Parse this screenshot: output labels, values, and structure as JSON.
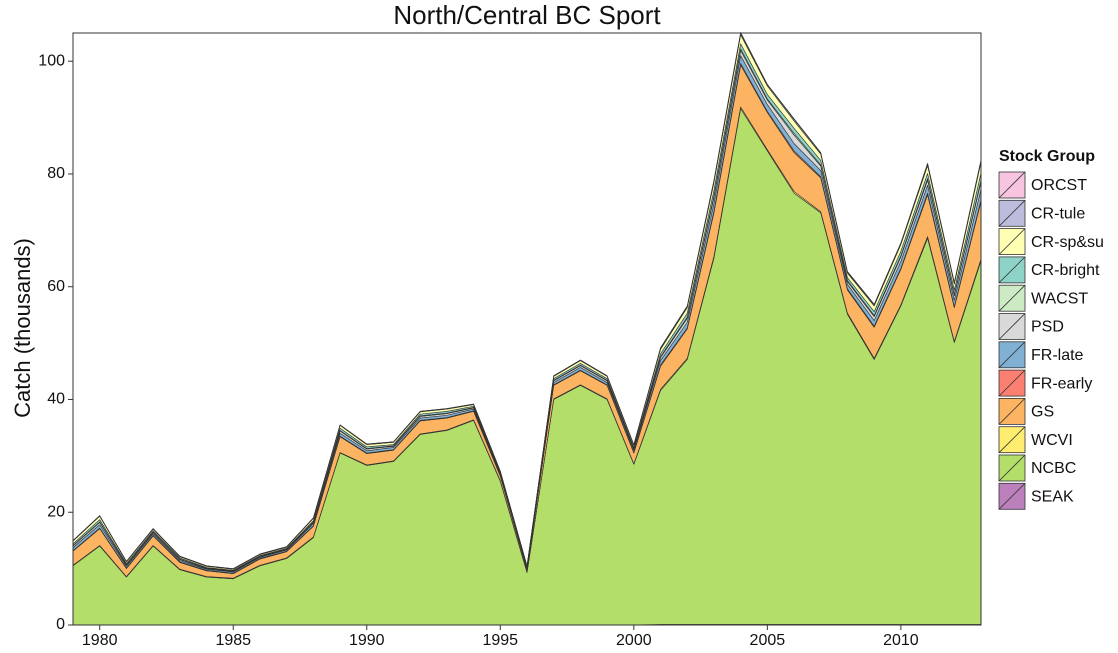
{
  "chart_data": {
    "type": "stacked_area",
    "title": "North/Central BC Sport",
    "ylabel": "Catch (thousands)",
    "legend_title": "Stock Group",
    "x": [
      1979,
      1980,
      1981,
      1982,
      1983,
      1984,
      1985,
      1986,
      1987,
      1988,
      1989,
      1990,
      1991,
      1992,
      1993,
      1994,
      1995,
      1996,
      1997,
      1998,
      1999,
      2000,
      2001,
      2002,
      2003,
      2004,
      2005,
      2006,
      2007,
      2008,
      2009,
      2010,
      2011,
      2012,
      2013
    ],
    "xlim": [
      1979,
      2013
    ],
    "xticks": [
      1980,
      1985,
      1990,
      1995,
      2000,
      2005,
      2010
    ],
    "ylim": [
      0,
      105
    ],
    "yticks": [
      0,
      20,
      40,
      60,
      80,
      100
    ],
    "series": [
      {
        "name": "ORCST",
        "color": "#f7c5e0",
        "values": [
          0,
          0,
          0,
          0,
          0,
          0,
          0,
          0,
          0,
          0,
          0,
          0,
          0,
          0,
          0,
          0,
          0,
          0,
          0,
          0,
          0,
          0,
          0.1,
          0.1,
          0.1,
          0.1,
          0.1,
          0.1,
          0.1,
          0.1,
          0.1,
          0.1,
          0.1,
          0.1,
          0.1
        ]
      },
      {
        "name": "CR-tule",
        "color": "#bcbddc",
        "values": [
          0.1,
          0.1,
          0.1,
          0.1,
          0.1,
          0.1,
          0.1,
          0.1,
          0.1,
          0.1,
          0.1,
          0.1,
          0.1,
          0.1,
          0.1,
          0.1,
          0.1,
          0.1,
          0.1,
          0.1,
          0.1,
          0.1,
          0.2,
          0.2,
          0.3,
          0.3,
          0.2,
          0.3,
          0.2,
          0.2,
          0.2,
          0.2,
          0.3,
          0.2,
          0.3
        ]
      },
      {
        "name": "CR-sp&su",
        "color": "#ffffb3",
        "values": [
          0.5,
          0.6,
          0.3,
          0.3,
          0.2,
          0.2,
          0.2,
          0.2,
          0.2,
          0.4,
          0.5,
          0.4,
          0.4,
          0.4,
          0.4,
          0.3,
          0.2,
          0.1,
          0.4,
          0.5,
          0.4,
          0.4,
          0.8,
          1,
          1.4,
          1.6,
          1.5,
          1.3,
          1.1,
          0.8,
          1,
          1.2,
          1.4,
          1.1,
          1.9
        ]
      },
      {
        "name": "CR-bright",
        "color": "#8dd3c7",
        "values": [
          0.3,
          0.4,
          0.2,
          0.2,
          0.2,
          0.1,
          0.1,
          0.1,
          0.1,
          0.2,
          0.4,
          0.3,
          0.2,
          0.3,
          0.3,
          0.2,
          0.1,
          0.1,
          0.3,
          0.3,
          0.3,
          0.2,
          0.5,
          0.7,
          1,
          0.9,
          0.8,
          0.9,
          0.8,
          0.5,
          0.7,
          0.8,
          0.9,
          0.8,
          1.3
        ]
      },
      {
        "name": "WACST",
        "color": "#ccebc5",
        "values": [
          0.1,
          0.1,
          0.1,
          0.1,
          0.1,
          0.1,
          0.1,
          0.1,
          0.1,
          0.1,
          0.1,
          0.1,
          0.1,
          0.1,
          0.1,
          0.1,
          0.1,
          0.1,
          0.1,
          0.1,
          0.1,
          0.1,
          0.2,
          0.2,
          0.3,
          0.3,
          0.2,
          0.3,
          0.2,
          0.2,
          0.2,
          0.2,
          0.3,
          0.2,
          0.3
        ]
      },
      {
        "name": "PSD",
        "color": "#d9d9d9",
        "values": [
          0.3,
          0.4,
          0.2,
          0.2,
          0.2,
          0.1,
          0.1,
          0.1,
          0.1,
          0.2,
          0.4,
          0.3,
          0.2,
          0.3,
          0.3,
          0.2,
          0.1,
          0.1,
          0.3,
          0.3,
          0.3,
          0.2,
          0.5,
          0.7,
          1,
          0.9,
          0.8,
          1.5,
          0.8,
          0.5,
          0.7,
          0.8,
          0.9,
          0.8,
          1.3
        ]
      },
      {
        "name": "FR-late",
        "color": "#80b1d3",
        "values": [
          0.5,
          0.6,
          0.3,
          0.3,
          0.2,
          0.2,
          0.2,
          0.2,
          0.2,
          0.4,
          0.5,
          0.4,
          0.4,
          0.4,
          0.4,
          0.3,
          0.2,
          0.1,
          0.4,
          0.5,
          0.4,
          0.4,
          0.8,
          1,
          1.4,
          1.4,
          1.2,
          1.3,
          1.1,
          0.8,
          1,
          1.2,
          1.4,
          1.1,
          1.9
        ]
      },
      {
        "name": "FR-early",
        "color": "#fb8072",
        "values": [
          0.1,
          0.1,
          0.1,
          0.1,
          0.1,
          0.1,
          0.1,
          0.1,
          0.1,
          0.1,
          0.1,
          0.1,
          0.1,
          0.1,
          0.1,
          0.1,
          0.1,
          0.1,
          0.1,
          0.1,
          0.1,
          0.1,
          0.2,
          0.2,
          0.3,
          0.3,
          0.2,
          0.3,
          0.2,
          0.2,
          0.2,
          0.2,
          0.3,
          0.2,
          0.3
        ]
      },
      {
        "name": "GS",
        "color": "#fdb462",
        "values": [
          2.5,
          3,
          1.4,
          1.7,
          1.2,
          1,
          0.8,
          1.1,
          1.1,
          1.9,
          2.8,
          2,
          1.9,
          2.3,
          2.1,
          1.5,
          0.8,
          0.4,
          2.4,
          2.5,
          2.4,
          1.9,
          4.1,
          5.2,
          7.7,
          7.4,
          6.6,
          6.9,
          6,
          4.1,
          5.5,
          6.3,
          7.4,
          6,
          10.2
        ]
      },
      {
        "name": "WCVI",
        "color": "#ffed6f",
        "values": [
          0.1,
          0.1,
          0.1,
          0.1,
          0.1,
          0.1,
          0.1,
          0.1,
          0.1,
          0.1,
          0.1,
          0.1,
          0.1,
          0.1,
          0.1,
          0.1,
          0.1,
          0.1,
          0.1,
          0.1,
          0.1,
          0.1,
          0.2,
          0.2,
          0.3,
          0.3,
          0.2,
          0.3,
          0.2,
          0.2,
          0.2,
          0.2,
          0.3,
          0.2,
          0.3
        ]
      },
      {
        "name": "NCBC",
        "color": "#b3de69",
        "values": [
          10.5,
          14,
          8.5,
          14,
          9.8,
          8.5,
          8.2,
          10.5,
          11.8,
          15.5,
          30.5,
          28.3,
          29,
          33.8,
          34.5,
          36.3,
          25.5,
          9.3,
          40,
          42.5,
          40,
          28.5,
          41.5,
          47,
          65,
          91.5,
          84,
          76.5,
          73,
          55,
          47,
          56.5,
          68.5,
          50,
          64.5
        ]
      },
      {
        "name": "SEAK",
        "color": "#bc80bd",
        "values": [
          0,
          0,
          0,
          0,
          0,
          0,
          0,
          0,
          0,
          0,
          0,
          0,
          0,
          0,
          0,
          0,
          0,
          0,
          0,
          0,
          0,
          0,
          0.1,
          0.1,
          0.1,
          0.1,
          0.1,
          0.1,
          0.1,
          0.1,
          0.1,
          0.1,
          0.1,
          0.1,
          0.1
        ]
      }
    ]
  }
}
